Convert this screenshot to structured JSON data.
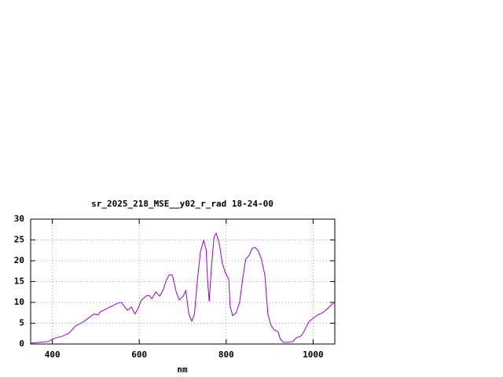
{
  "chart_data": {
    "type": "line",
    "title": "sr_2025_218_MSE__y02_r_rad 18-24-00",
    "x_label": "nm",
    "x": [
      350,
      370,
      391,
      399,
      409,
      424,
      438,
      453,
      471,
      485,
      496,
      505,
      510,
      525,
      539,
      550,
      559,
      568,
      573,
      582,
      590,
      597,
      604,
      615,
      622,
      629,
      638,
      647,
      655,
      662,
      669,
      676,
      685,
      692,
      701,
      707,
      714,
      721,
      727,
      734,
      741,
      748,
      754,
      757,
      761,
      766,
      772,
      777,
      784,
      791,
      798,
      806,
      809,
      815,
      823,
      831,
      838,
      845,
      853,
      860,
      867,
      874,
      881,
      889,
      896,
      903,
      910,
      919,
      925,
      932,
      943,
      954,
      961,
      972,
      979,
      990,
      1000,
      1011,
      1022,
      1033,
      1040,
      1047
    ],
    "series": [
      {
        "name": "sr_2025_218_MSE__y02_r_rad",
        "color": "#9400d3",
        "values": [
          0.2,
          0.4,
          0.6,
          1.1,
          1.5,
          1.9,
          2.6,
          4.3,
          5.3,
          6.4,
          7.2,
          7.0,
          7.7,
          8.5,
          9.2,
          9.8,
          10.0,
          8.7,
          8.1,
          8.9,
          7.2,
          8.5,
          10.4,
          11.5,
          11.7,
          10.9,
          12.5,
          11.5,
          13.0,
          15.3,
          16.6,
          16.6,
          12.5,
          10.6,
          11.5,
          12.8,
          7.2,
          5.5,
          7.2,
          15.7,
          22.3,
          24.9,
          22.6,
          15.7,
          10.2,
          18.5,
          25.7,
          26.6,
          24.2,
          19.4,
          17.2,
          15.5,
          9.1,
          6.8,
          7.5,
          10.0,
          15.7,
          20.4,
          21.3,
          23.0,
          23.2,
          22.3,
          20.4,
          16.6,
          7.2,
          4.5,
          3.4,
          3.0,
          1.1,
          0.4,
          0.4,
          0.6,
          1.5,
          1.9,
          3.0,
          5.3,
          6.2,
          7.0,
          7.5,
          8.5,
          9.2,
          9.8
        ]
      }
    ],
    "xlim": [
      350,
      1050
    ],
    "ylim": [
      0,
      30
    ],
    "xticks": [
      400,
      600,
      800,
      1000
    ],
    "yticks": [
      0,
      5,
      10,
      15,
      20,
      25,
      30
    ],
    "grid": true
  }
}
